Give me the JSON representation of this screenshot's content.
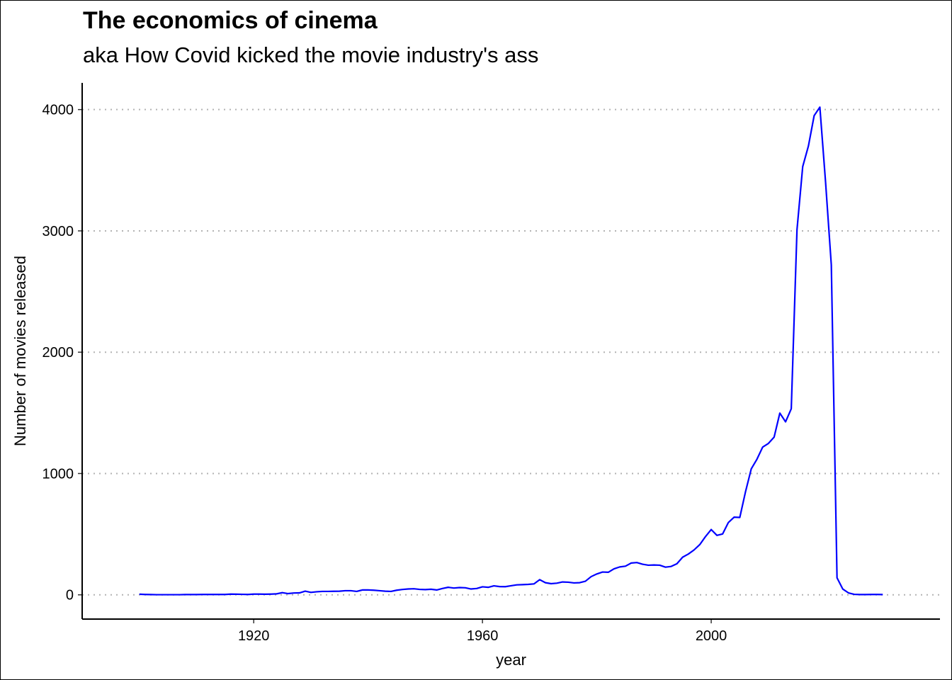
{
  "chart_data": {
    "type": "line",
    "title": "The economics of cinema",
    "subtitle": "aka How Covid kicked the movie industry's ass",
    "xlabel": "year",
    "ylabel": "Number of movies released",
    "x_ticks": [
      1920,
      1960,
      2000
    ],
    "y_ticks": [
      0,
      1000,
      2000,
      3000,
      4000
    ],
    "xlim": [
      1890,
      2040
    ],
    "ylim": [
      -200,
      4220
    ],
    "grid": "horizontal-dotted",
    "line_color": "#0000ff",
    "grid_color": "#b3b3b3",
    "series": [
      {
        "x": [
          1900,
          1901,
          1902,
          1903,
          1904,
          1905,
          1906,
          1907,
          1908,
          1909,
          1910,
          1911,
          1912,
          1913,
          1914,
          1915,
          1916,
          1917,
          1918,
          1919,
          1920,
          1921,
          1922,
          1923,
          1924,
          1925,
          1926,
          1927,
          1928,
          1929,
          1930,
          1931,
          1932,
          1933,
          1934,
          1935,
          1936,
          1937,
          1938,
          1939,
          1940,
          1941,
          1942,
          1943,
          1944,
          1945,
          1946,
          1947,
          1948,
          1949,
          1950,
          1951,
          1952,
          1953,
          1954,
          1955,
          1956,
          1957,
          1958,
          1959,
          1960,
          1961,
          1962,
          1963,
          1964,
          1965,
          1966,
          1967,
          1968,
          1969,
          1970,
          1971,
          1972,
          1973,
          1974,
          1975,
          1976,
          1977,
          1978,
          1979,
          1980,
          1981,
          1982,
          1983,
          1984,
          1985,
          1986,
          1987,
          1988,
          1989,
          1990,
          1991,
          1992,
          1993,
          1994,
          1995,
          1996,
          1997,
          1998,
          1999,
          2000,
          2001,
          2002,
          2003,
          2004,
          2005,
          2006,
          2007,
          2008,
          2009,
          2010,
          2011,
          2012,
          2013,
          2014,
          2015,
          2016,
          2017,
          2018,
          2019,
          2020,
          2021,
          2022,
          2023,
          2024,
          2025,
          2026,
          2027,
          2028,
          2029,
          2030
        ],
        "y": [
          5,
          3,
          2,
          1,
          1,
          1,
          1,
          1,
          2,
          2,
          2,
          3,
          3,
          3,
          3,
          3,
          6,
          5,
          4,
          3,
          6,
          6,
          5,
          6,
          8,
          18,
          10,
          15,
          16,
          30,
          20,
          25,
          28,
          28,
          29,
          30,
          34,
          34,
          28,
          40,
          40,
          38,
          34,
          30,
          28,
          38,
          44,
          48,
          50,
          45,
          43,
          46,
          40,
          52,
          62,
          56,
          60,
          58,
          48,
          52,
          66,
          62,
          74,
          68,
          67,
          75,
          82,
          84,
          86,
          90,
          125,
          100,
          92,
          96,
          106,
          104,
          98,
          100,
          112,
          150,
          172,
          188,
          186,
          214,
          230,
          236,
          262,
          266,
          252,
          244,
          246,
          244,
          228,
          234,
          256,
          310,
          336,
          370,
          414,
          480,
          538,
          490,
          502,
          596,
          640,
          638,
          850,
          1038,
          1118,
          1218,
          1248,
          1300,
          1498,
          1426,
          1534,
          3010,
          3530,
          3700,
          3950,
          4020,
          3400,
          2720,
          140,
          48,
          16,
          4,
          2,
          2,
          3,
          3,
          2
        ]
      }
    ]
  }
}
